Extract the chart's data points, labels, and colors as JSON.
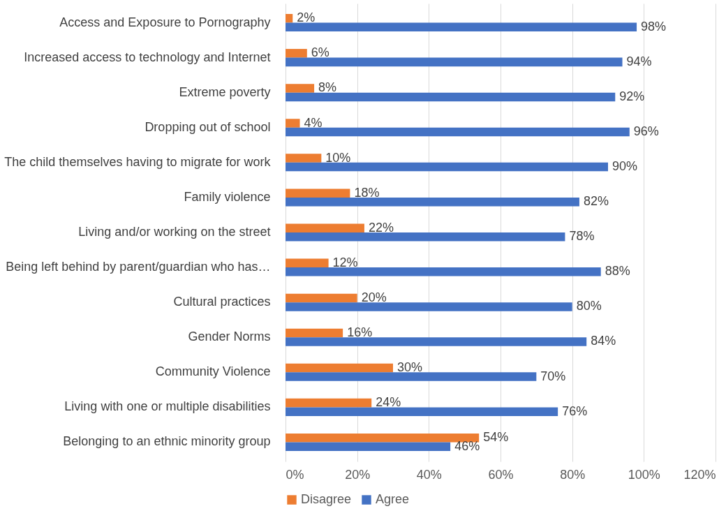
{
  "chart_data": {
    "type": "bar",
    "orientation": "horizontal",
    "categories": [
      "Access and Exposure to Pornography",
      "Increased access to technology and Internet",
      "Extreme poverty",
      "Dropping out of school",
      "The child themselves having to migrate for work",
      "Family violence",
      "Living and/or working on the street",
      "Being left behind by parent/guardian who has…",
      "Cultural practices",
      "Gender Norms",
      "Community Violence",
      "Living with one or multiple disabilities",
      "Belonging to an ethnic minority group"
    ],
    "series": [
      {
        "name": "Disagree",
        "color": "#ed7d31",
        "values": [
          2,
          6,
          8,
          4,
          10,
          18,
          22,
          12,
          20,
          16,
          30,
          24,
          54
        ],
        "value_labels": [
          "2%",
          "6%",
          "8%",
          "4%",
          "10%",
          "18%",
          "22%",
          "12%",
          "20%",
          "16%",
          "30%",
          "24%",
          "54%"
        ]
      },
      {
        "name": "Agree",
        "color": "#4472c4",
        "values": [
          98,
          94,
          92,
          96,
          90,
          82,
          78,
          88,
          80,
          84,
          70,
          76,
          46
        ],
        "value_labels": [
          "98%",
          "94%",
          "92%",
          "96%",
          "90%",
          "82%",
          "78%",
          "88%",
          "80%",
          "84%",
          "70%",
          "76%",
          "46%"
        ]
      }
    ],
    "xlim": [
      0,
      120
    ],
    "xticks": [
      {
        "value": 0,
        "label": "0%"
      },
      {
        "value": 20,
        "label": "20%"
      },
      {
        "value": 40,
        "label": "40%"
      },
      {
        "value": 60,
        "label": "60%"
      },
      {
        "value": 80,
        "label": "80%"
      },
      {
        "value": 100,
        "label": "100%"
      },
      {
        "value": 120,
        "label": "120%"
      }
    ],
    "grid": "x",
    "legend": "bottom"
  }
}
